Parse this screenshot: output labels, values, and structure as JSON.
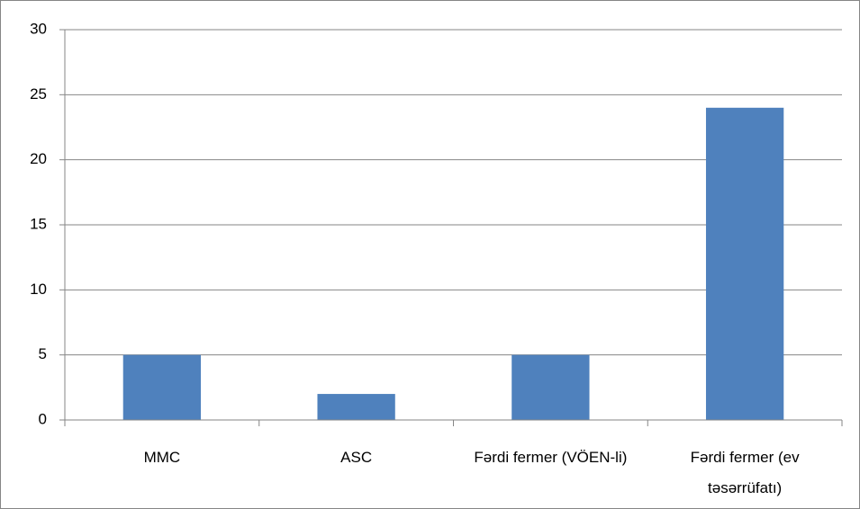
{
  "chart_data": {
    "type": "bar",
    "categories": [
      "MMC",
      "ASC",
      "Fərdi fermer (VÖEN-li)",
      "Fərdi fermer (ev təsərrüfatı)"
    ],
    "values": [
      5,
      2,
      5,
      24
    ],
    "color": "#4f81bd",
    "ylim": [
      0,
      30
    ],
    "yticks": [
      0,
      5,
      10,
      15,
      20,
      25,
      30
    ],
    "grid": true
  }
}
